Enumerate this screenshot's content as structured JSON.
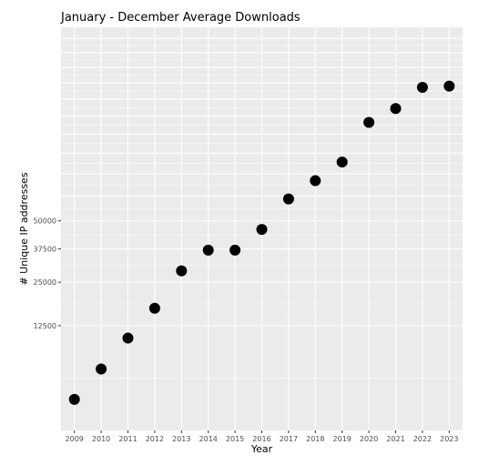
{
  "chart_data": {
    "type": "scatter",
    "title": "January - December Average Downloads",
    "xlabel": "Year",
    "ylabel": "# Unique IP addresses",
    "x_scale": "categorical",
    "y_scale": "sqrt",
    "ylim": [
      0,
      185000
    ],
    "y_ticks": [
      12500,
      25000,
      37500,
      50000
    ],
    "y_tick_labels": [
      "12500",
      "25000",
      "37500",
      "50000"
    ],
    "grid": true,
    "legend": "none",
    "colors": {
      "panel": "#ebebeb",
      "grid": "#ffffff",
      "point": "#000000"
    },
    "categories": [
      "2009",
      "2010",
      "2011",
      "2012",
      "2013",
      "2014",
      "2015",
      "2016",
      "2017",
      "2018",
      "2019",
      "2020",
      "2021",
      "2022",
      "2023"
    ],
    "values": [
      1100,
      4300,
      9700,
      17000,
      29000,
      37000,
      37000,
      46000,
      61000,
      71000,
      82000,
      108000,
      118000,
      134000,
      135000
    ]
  }
}
